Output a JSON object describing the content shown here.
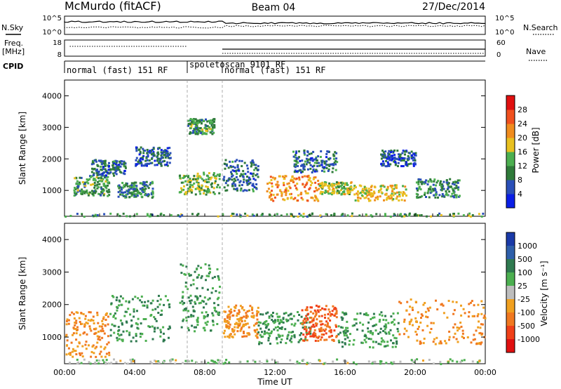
{
  "header": {
    "station": "McMurdo (fitACF)",
    "beam": "Beam 04",
    "date": "27/Dec/2014"
  },
  "status": {
    "nsky_label": "N.Sky",
    "nsearch_label": "N.Search",
    "freq_label_line1": "Freq.",
    "freq_label_line2": "[MHz]",
    "nave_label": "Nave",
    "cpid_label": "CPID",
    "left_ticks": [
      "10^5",
      "10^0",
      "18",
      "8"
    ],
    "right_ticks": [
      "10^5",
      "10^0",
      "60",
      "0"
    ],
    "cpid_segments": [
      {
        "label": "normal (fast) 151 RF",
        "start": 0.0
      },
      {
        "label": "spoletoscan 9101 RF",
        "start": 7.0
      },
      {
        "label": "normal (fast) 151 RF",
        "start": 9.0
      }
    ]
  },
  "chart_data": [
    {
      "type": "heatmap",
      "name": "power",
      "ylabel": "Slant Range [km]",
      "colorbar_label": "Power [dB]",
      "xlim": [
        0,
        24
      ],
      "ylim": [
        180,
        4500
      ],
      "yticks": [
        1000,
        2000,
        3000,
        4000
      ],
      "colorbar_ticks": [
        "4",
        "8",
        "12",
        "16",
        "20",
        "24",
        "28"
      ],
      "colorbar_colors": [
        "#0a1ee6",
        "#2a4fb8",
        "#2f7a3a",
        "#4caf50",
        "#e8c020",
        "#f08c1e",
        "#f0501e",
        "#e01010"
      ],
      "features": [
        {
          "x": [
            0.5,
            2.5
          ],
          "y": [
            850,
            1500
          ],
          "value": 14
        },
        {
          "x": [
            1.5,
            3.5
          ],
          "y": [
            1500,
            2000
          ],
          "value": 10
        },
        {
          "x": [
            3.0,
            5.0
          ],
          "y": [
            800,
            1300
          ],
          "value": 12
        },
        {
          "x": [
            4.0,
            6.0
          ],
          "y": [
            1800,
            2400
          ],
          "value": 9
        },
        {
          "x": [
            6.5,
            8.8
          ],
          "y": [
            900,
            1600
          ],
          "value": 16
        },
        {
          "x": [
            7.0,
            8.5
          ],
          "y": [
            2800,
            3300
          ],
          "value": 14
        },
        {
          "x": [
            9.0,
            11.0
          ],
          "y": [
            1000,
            2000
          ],
          "value": 10
        },
        {
          "x": [
            11.5,
            14.5
          ],
          "y": [
            700,
            1500
          ],
          "value": 24
        },
        {
          "x": [
            13.0,
            15.5
          ],
          "y": [
            1600,
            2300
          ],
          "value": 10
        },
        {
          "x": [
            14.5,
            16.5
          ],
          "y": [
            900,
            1300
          ],
          "value": 18
        },
        {
          "x": [
            16.5,
            19.5
          ],
          "y": [
            700,
            1200
          ],
          "value": 20
        },
        {
          "x": [
            18.0,
            20.0
          ],
          "y": [
            1800,
            2300
          ],
          "value": 8
        },
        {
          "x": [
            20.0,
            22.5
          ],
          "y": [
            800,
            1400
          ],
          "value": 12
        },
        {
          "x": [
            0.0,
            24.0
          ],
          "y": [
            200,
            300
          ],
          "value": 14
        }
      ]
    },
    {
      "type": "heatmap",
      "name": "velocity",
      "ylabel": "Slant Range [km]",
      "xlabel": "Time UT",
      "colorbar_label": "Velocity [m s⁻¹]",
      "xlim": [
        0,
        24
      ],
      "ylim": [
        180,
        4500
      ],
      "yticks": [
        1000,
        2000,
        3000,
        4000
      ],
      "xticks": [
        "00:00",
        "04:00",
        "08:00",
        "12:00",
        "16:00",
        "20:00",
        "00:00"
      ],
      "colorbar_ticks": [
        "1000",
        "500",
        "100",
        "25",
        "-25",
        "-100",
        "-500",
        "-1000"
      ],
      "colorbar_colors": [
        "#1a3aa8",
        "#2e5faa",
        "#2f7a50",
        "#4caf50",
        "#bdbdbd",
        "#f0a020",
        "#f07820",
        "#f04018",
        "#e01010"
      ],
      "features": [
        {
          "x": [
            0.0,
            2.5
          ],
          "y": [
            400,
            1800
          ],
          "value": -100
        },
        {
          "x": [
            2.5,
            6.0
          ],
          "y": [
            900,
            2300
          ],
          "value": 100
        },
        {
          "x": [
            6.5,
            8.8
          ],
          "y": [
            1200,
            3300
          ],
          "value": 100
        },
        {
          "x": [
            9.0,
            11.0
          ],
          "y": [
            1000,
            2000
          ],
          "value": -100
        },
        {
          "x": [
            11.0,
            14.0
          ],
          "y": [
            800,
            1800
          ],
          "value": 100
        },
        {
          "x": [
            13.5,
            15.5
          ],
          "y": [
            900,
            2000
          ],
          "value": -500
        },
        {
          "x": [
            15.5,
            19.0
          ],
          "y": [
            700,
            1800
          ],
          "value": 100
        },
        {
          "x": [
            19.0,
            24.0
          ],
          "y": [
            800,
            2200
          ],
          "value": -100
        },
        {
          "x": [
            0.0,
            24.0
          ],
          "y": [
            200,
            350
          ],
          "value": 25
        }
      ]
    }
  ]
}
